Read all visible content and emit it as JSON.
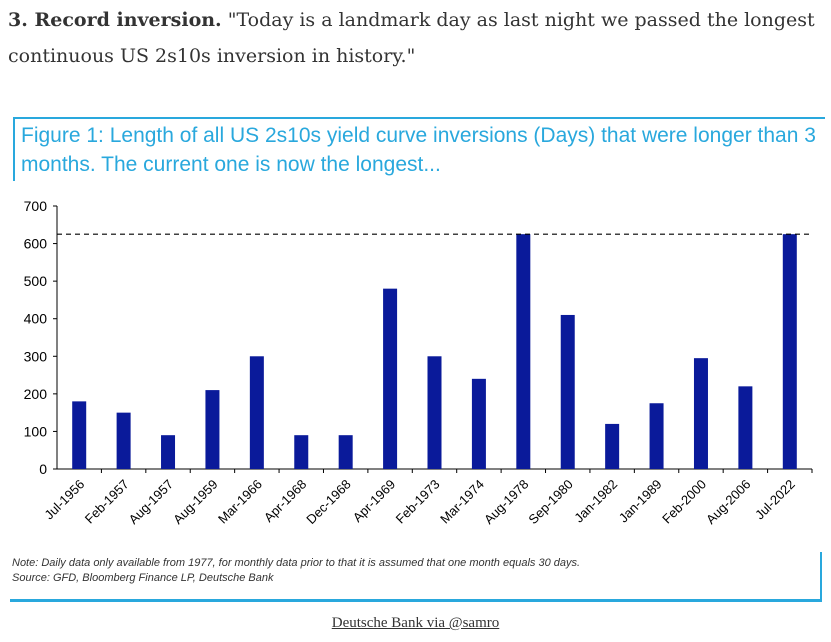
{
  "intro": {
    "heading": "3. Record inversion.",
    "quote": " \"Today is a landmark day as last night we passed the longest continuous US 2s10s inversion in history.\""
  },
  "figure_title": "Figure 1: Length of all US 2s10s yield curve inversions (Days) that were longer than 3 months. The current one is now the longest...",
  "note": "Note: Daily data only available from 1977, for monthly data prior to that it is assumed that one month equals 30 days.",
  "source": "Source: GFD, Bloomberg Finance LP, Deutsche Bank",
  "credit": "Deutsche Bank via @samro",
  "chart_data": {
    "type": "bar",
    "categories": [
      "Jul-1956",
      "Feb-1957",
      "Aug-1957",
      "Aug-1959",
      "Mar-1966",
      "Apr-1968",
      "Dec-1968",
      "Apr-1969",
      "Feb-1973",
      "Mar-1974",
      "Aug-1978",
      "Sep-1980",
      "Jan-1982",
      "Jan-1989",
      "Feb-2000",
      "Aug-2006",
      "Jul-2022"
    ],
    "values": [
      180,
      150,
      90,
      210,
      300,
      90,
      90,
      480,
      300,
      240,
      625,
      410,
      120,
      175,
      295,
      220,
      625
    ],
    "reference_line": 625,
    "ylim": [
      0,
      700
    ],
    "yticks": [
      0,
      100,
      200,
      300,
      400,
      500,
      600,
      700
    ],
    "bar_color": "#0a1a9a",
    "grid": false
  }
}
